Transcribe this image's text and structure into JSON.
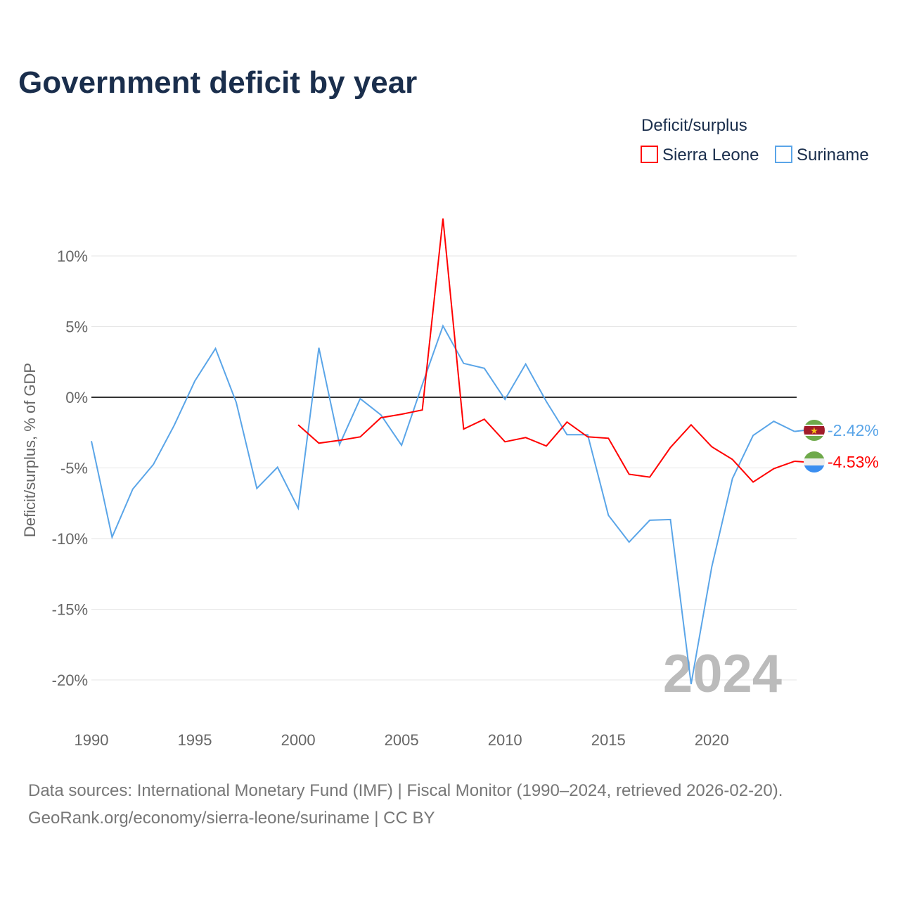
{
  "chart_data": {
    "type": "line",
    "title": "Government deficit by year",
    "ylabel": "Deficit/surplus, % of GDP",
    "xlabel": "",
    "xlim": [
      1990,
      2024
    ],
    "ylim": [
      -22.5,
      13
    ],
    "yticks": [
      10,
      5,
      0,
      -5,
      -10,
      -15,
      -20
    ],
    "ytick_labels": [
      "10%",
      "5%",
      "0%",
      "-5%",
      "-10%",
      "-15%",
      "-20%"
    ],
    "xticks": [
      1990,
      1995,
      2000,
      2005,
      2010,
      2015,
      2020
    ],
    "xtick_labels": [
      "1990",
      "1995",
      "2000",
      "2005",
      "2010",
      "2015",
      "2020"
    ],
    "legend_title": "Deficit/surplus",
    "legend_position": "top-right",
    "year_watermark": "2024",
    "series": [
      {
        "name": "Sierra Leone",
        "color": "#ff0000",
        "end_label": "-4.53%",
        "x": [
          2000,
          2001,
          2002,
          2003,
          2004,
          2005,
          2006,
          2007,
          2008,
          2009,
          2010,
          2011,
          2012,
          2013,
          2014,
          2015,
          2016,
          2017,
          2018,
          2019,
          2020,
          2021,
          2022,
          2023,
          2024
        ],
        "values": [
          -1.95,
          -3.25,
          -3.05,
          -2.8,
          -1.45,
          -1.2,
          -0.9,
          12.65,
          -2.25,
          -1.55,
          -3.15,
          -2.85,
          -3.45,
          -1.75,
          -2.8,
          -2.9,
          -5.45,
          -5.65,
          -3.55,
          -1.95,
          -3.5,
          -4.4,
          -6.0,
          -5.05,
          -4.53
        ]
      },
      {
        "name": "Suriname",
        "color": "#5aa5e8",
        "end_label": "-2.42%",
        "x": [
          1990,
          1991,
          1992,
          1993,
          1994,
          1995,
          1996,
          1997,
          1998,
          1999,
          2000,
          2001,
          2002,
          2003,
          2004,
          2005,
          2006,
          2007,
          2008,
          2009,
          2010,
          2011,
          2012,
          2013,
          2014,
          2015,
          2016,
          2017,
          2018,
          2019,
          2020,
          2021,
          2022,
          2023,
          2024
        ],
        "values": [
          -3.1,
          -9.9,
          -6.5,
          -4.75,
          -2.0,
          1.15,
          3.45,
          -0.35,
          -6.45,
          -4.95,
          -7.85,
          3.5,
          -3.35,
          -0.1,
          -1.25,
          -3.4,
          0.9,
          5.05,
          2.4,
          2.05,
          -0.15,
          2.35,
          -0.3,
          -2.65,
          -2.65,
          -8.35,
          -10.25,
          -8.7,
          -8.65,
          -20.3,
          -12.0,
          -5.75,
          -2.7,
          -1.7,
          -2.42
        ]
      }
    ]
  },
  "footer": {
    "line1": "Data sources: International Monetary Fund (IMF) | Fiscal Monitor (1990–2024, retrieved 2026-02-20).",
    "line2": "GeoRank.org/economy/sierra-leone/suriname | CC BY"
  }
}
